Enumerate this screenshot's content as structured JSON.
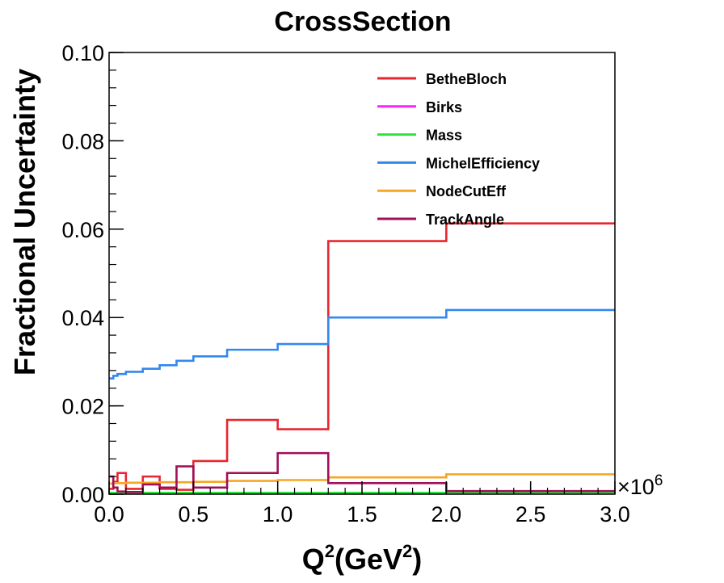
{
  "chart_data": {
    "type": "line",
    "title": "CrossSection",
    "xlabel": "Q",
    "xlabel_sup1": "2",
    "xlabel_mid": "(GeV",
    "xlabel_sup2": "2",
    "xlabel_end": ")",
    "ylabel": "Fractional Uncertainty",
    "x_multiplier_base": "×10",
    "x_multiplier_exp": "6",
    "xlim": [
      0,
      3.0
    ],
    "ylim": [
      0,
      0.1
    ],
    "x_ticks": [
      "0.0",
      "0.5",
      "1.0",
      "1.5",
      "2.0",
      "2.5",
      "3.0"
    ],
    "y_ticks": [
      "0.00",
      "0.02",
      "0.04",
      "0.06",
      "0.08",
      "0.10"
    ],
    "grid": false,
    "legend_position": "top-right",
    "bin_edges": [
      0,
      0.025,
      0.05,
      0.1,
      0.2,
      0.3,
      0.4,
      0.5,
      0.7,
      1.0,
      1.3,
      2.0,
      3.0
    ],
    "series": [
      {
        "name": "BetheBloch",
        "color": "#e8262f",
        "values": [
          0.0012,
          0.0028,
          0.0048,
          0.0012,
          0.004,
          0.0012,
          0.001,
          0.0075,
          0.0168,
          0.0147,
          0.0573,
          0.0613
        ]
      },
      {
        "name": "Birks",
        "color": "#ff20ff",
        "values": [
          0.0002,
          0.0002,
          0.0002,
          0.0002,
          0.0002,
          0.0002,
          0.0002,
          0.0002,
          0.0002,
          0.0002,
          0.0002,
          0.0002
        ]
      },
      {
        "name": "Mass",
        "color": "#2be43d",
        "values": [
          0.0003,
          0.0003,
          0.0003,
          0.0003,
          0.0003,
          0.0003,
          0.0003,
          0.0003,
          0.0003,
          0.0003,
          0.0003,
          0.0003
        ]
      },
      {
        "name": "MichelEfficiency",
        "color": "#3388ee",
        "values": [
          0.0262,
          0.0268,
          0.0272,
          0.0277,
          0.0284,
          0.0292,
          0.0302,
          0.0312,
          0.0327,
          0.034,
          0.04,
          0.0417
        ]
      },
      {
        "name": "NodeCutEff",
        "color": "#f5a623",
        "values": [
          0.0024,
          0.0025,
          0.0025,
          0.0026,
          0.0026,
          0.0027,
          0.0027,
          0.0028,
          0.003,
          0.0032,
          0.0038,
          0.0045
        ]
      },
      {
        "name": "TrackAngle",
        "color": "#a0105a",
        "values": [
          0.004,
          0.0015,
          0.0006,
          0.0005,
          0.0022,
          0.0015,
          0.0063,
          0.0015,
          0.0048,
          0.0093,
          0.0025,
          0.0007
        ]
      }
    ]
  }
}
